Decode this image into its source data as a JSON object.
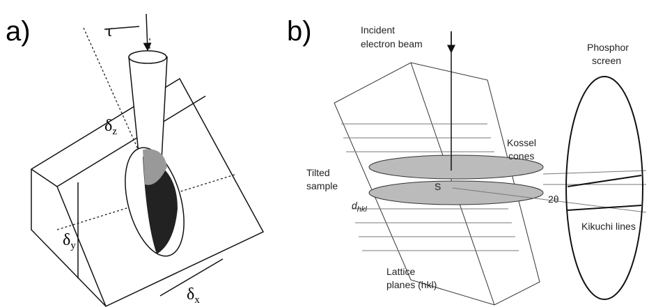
{
  "panel_a": {
    "label": "a)",
    "tau": "τ",
    "delta_z": {
      "symbol": "δ",
      "subscript": "z"
    },
    "delta_y": {
      "symbol": "δ",
      "subscript": "y"
    },
    "delta_x": {
      "symbol": "δ",
      "subscript": "x"
    }
  },
  "panel_b": {
    "label": "b)",
    "incident_beam": [
      "Incident",
      "electron beam"
    ],
    "phosphor_screen": [
      "Phosphor",
      "screen"
    ],
    "kossel_cones": [
      "Kossel",
      "cones"
    ],
    "tilted_sample": [
      "Tilted",
      "sample"
    ],
    "source_point": "S",
    "two_theta": "2θ",
    "d_spacing": {
      "symbol": "d",
      "subscript": "hkl"
    },
    "kikuchi_lines": "Kikuchi lines",
    "lattice_planes": [
      "Lattice",
      "planes (hkl)"
    ]
  }
}
